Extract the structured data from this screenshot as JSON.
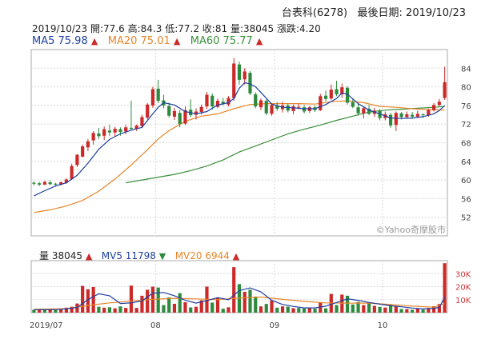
{
  "header": {
    "stock_name": "台表科(6278)",
    "last_date_label": "最後日期: 2019/10/23"
  },
  "quote": {
    "date": "2019/10/23",
    "open": "開:77.6",
    "high": "高:84.3",
    "low": "低:77.2",
    "close": "收:81",
    "volume": "量:38045",
    "change": "漲跌:4.20"
  },
  "ma_legend": [
    {
      "label": "MA5 75.98",
      "color": "#1f3fa0",
      "arrow": "▲"
    },
    {
      "label": "MA20 75.01",
      "color": "#e8862a",
      "arrow": "▲"
    },
    {
      "label": "MA60 75.77",
      "color": "#3b8f3b",
      "arrow": "▲"
    }
  ],
  "vol_legend": [
    {
      "label": "量 38045",
      "color": "#222222",
      "arrow": "▲"
    },
    {
      "label": "MV5 11798",
      "color": "#1f3fa0",
      "arrow": "▼"
    },
    {
      "label": "MV20 6944",
      "color": "#e8862a",
      "arrow": "▲"
    }
  ],
  "watermark": "©Yahoo奇摩股市",
  "colors": {
    "up": "#cc2929",
    "down": "#2e8b3d",
    "ma5": "#1f3fa0",
    "ma20": "#e8862a",
    "ma60": "#3b8f3b"
  },
  "chart_data": {
    "type": "candlestick",
    "price_axis": {
      "min": 48,
      "max": 88,
      "ticks": [
        52,
        56,
        60,
        64,
        68,
        72,
        76,
        80,
        84
      ]
    },
    "volume_axis": {
      "min": 0,
      "max": 40000,
      "ticks": [
        "10K",
        "20K",
        "30K"
      ]
    },
    "x_labels": [
      {
        "label": "2019/07",
        "index": 0
      },
      {
        "label": "08",
        "index": 23
      },
      {
        "label": "09",
        "index": 45
      },
      {
        "label": "10",
        "index": 65
      }
    ],
    "candles": [
      [
        59.4,
        59.7,
        58.8,
        59.2
      ],
      [
        59.3,
        59.6,
        58.7,
        59.0
      ],
      [
        59.0,
        59.8,
        58.9,
        59.6
      ],
      [
        59.5,
        59.9,
        58.9,
        59.1
      ],
      [
        59.2,
        59.4,
        58.6,
        59.0
      ],
      [
        59.0,
        59.7,
        58.8,
        59.5
      ],
      [
        59.4,
        60.4,
        59.2,
        60.1
      ],
      [
        60.2,
        63.5,
        60.0,
        63.0
      ],
      [
        63.2,
        65.6,
        62.8,
        65.4
      ],
      [
        65.0,
        67.6,
        64.9,
        67.2
      ],
      [
        67.0,
        68.8,
        66.2,
        68.3
      ],
      [
        68.5,
        70.5,
        67.6,
        70.1
      ],
      [
        70.0,
        71.2,
        68.8,
        69.4
      ],
      [
        69.5,
        71.5,
        68.6,
        70.9
      ],
      [
        70.6,
        71.9,
        69.4,
        70.2
      ],
      [
        70.2,
        71.4,
        69.4,
        71.0
      ],
      [
        70.9,
        71.3,
        69.5,
        70.3
      ],
      [
        70.4,
        71.8,
        69.8,
        71.3
      ],
      [
        71.2,
        77.0,
        70.6,
        71.0
      ],
      [
        71.0,
        71.9,
        70.5,
        71.7
      ],
      [
        71.6,
        74.0,
        71.2,
        73.5
      ],
      [
        73.4,
        76.5,
        73.0,
        76.2
      ],
      [
        76.0,
        80.0,
        75.5,
        79.5
      ],
      [
        79.6,
        81.5,
        76.5,
        77.0
      ],
      [
        77.1,
        78.3,
        75.4,
        76.0
      ],
      [
        75.9,
        76.6,
        73.4,
        73.8
      ],
      [
        73.6,
        75.5,
        72.9,
        74.8
      ],
      [
        74.4,
        75.0,
        71.3,
        72.0
      ],
      [
        72.1,
        75.8,
        71.8,
        75.0
      ],
      [
        75.1,
        77.3,
        73.5,
        73.9
      ],
      [
        74.0,
        75.4,
        73.0,
        74.7
      ],
      [
        74.6,
        76.2,
        74.0,
        75.7
      ],
      [
        75.8,
        78.9,
        75.2,
        78.3
      ],
      [
        78.1,
        78.6,
        75.1,
        75.8
      ],
      [
        75.7,
        77.5,
        75.4,
        77.0
      ],
      [
        76.8,
        77.6,
        76.0,
        76.3
      ],
      [
        76.2,
        78.0,
        75.8,
        77.6
      ],
      [
        77.6,
        86.2,
        77.0,
        85.0
      ],
      [
        84.8,
        85.4,
        80.5,
        81.5
      ],
      [
        81.6,
        84.0,
        80.5,
        83.3
      ],
      [
        83.0,
        83.4,
        78.2,
        78.6
      ],
      [
        78.4,
        78.8,
        75.4,
        75.8
      ],
      [
        75.6,
        77.5,
        75.0,
        77.1
      ],
      [
        77.0,
        77.3,
        73.9,
        74.3
      ],
      [
        74.2,
        76.5,
        73.8,
        76.1
      ],
      [
        76.0,
        76.7,
        74.8,
        75.3
      ],
      [
        75.2,
        76.8,
        74.5,
        76.0
      ],
      [
        76.0,
        76.4,
        74.5,
        74.9
      ],
      [
        74.8,
        76.2,
        74.1,
        75.8
      ],
      [
        75.7,
        76.4,
        75.2,
        75.7
      ],
      [
        75.6,
        76.1,
        74.3,
        74.7
      ],
      [
        74.8,
        75.9,
        74.4,
        75.6
      ],
      [
        75.6,
        76.0,
        74.6,
        75.0
      ],
      [
        75.0,
        78.5,
        74.8,
        78.0
      ],
      [
        78.1,
        79.2,
        76.9,
        77.4
      ],
      [
        77.5,
        80.5,
        77.2,
        79.4
      ],
      [
        79.5,
        81.3,
        78.0,
        78.4
      ],
      [
        78.4,
        80.7,
        77.6,
        79.9
      ],
      [
        79.8,
        80.1,
        76.2,
        76.6
      ],
      [
        76.7,
        77.5,
        75.4,
        75.7
      ],
      [
        75.6,
        76.4,
        73.8,
        74.3
      ],
      [
        74.3,
        75.8,
        73.2,
        75.4
      ],
      [
        75.3,
        76.1,
        73.9,
        74.2
      ],
      [
        74.2,
        75.5,
        73.5,
        74.9
      ],
      [
        74.8,
        75.2,
        72.8,
        73.3
      ],
      [
        73.3,
        74.7,
        72.8,
        74.1
      ],
      [
        74.0,
        74.4,
        71.2,
        71.7
      ],
      [
        71.8,
        74.7,
        70.5,
        74.4
      ],
      [
        74.3,
        74.6,
        73.0,
        73.5
      ],
      [
        73.5,
        74.7,
        73.2,
        74.1
      ],
      [
        74.0,
        74.6,
        73.1,
        73.6
      ],
      [
        73.6,
        74.9,
        73.4,
        74.2
      ],
      [
        74.1,
        74.3,
        73.3,
        73.9
      ],
      [
        73.9,
        75.3,
        73.6,
        75.0
      ],
      [
        75.0,
        76.5,
        74.7,
        76.1
      ],
      [
        76.1,
        77.4,
        75.8,
        76.8
      ],
      [
        77.6,
        84.3,
        77.2,
        81.0
      ]
    ],
    "ma5": [
      [
        0,
        56.6
      ],
      [
        2,
        57.7
      ],
      [
        4,
        58.7
      ],
      [
        6,
        59.4
      ],
      [
        8,
        61.0
      ],
      [
        10,
        63.6
      ],
      [
        12,
        66.6
      ],
      [
        14,
        68.7
      ],
      [
        16,
        69.9
      ],
      [
        18,
        70.7
      ],
      [
        20,
        71.3
      ],
      [
        22,
        74.2
      ],
      [
        23,
        75.6
      ],
      [
        24,
        76.6
      ],
      [
        26,
        76.1
      ],
      [
        28,
        74.7
      ],
      [
        30,
        74.2
      ],
      [
        32,
        74.7
      ],
      [
        34,
        76.1
      ],
      [
        36,
        76.6
      ],
      [
        37,
        77.5
      ],
      [
        38,
        79.7
      ],
      [
        39,
        80.9
      ],
      [
        40,
        80.6
      ],
      [
        41,
        80.0
      ],
      [
        42,
        78.8
      ],
      [
        44,
        76.3
      ],
      [
        46,
        75.6
      ],
      [
        48,
        75.5
      ],
      [
        50,
        75.3
      ],
      [
        52,
        75.3
      ],
      [
        54,
        76.2
      ],
      [
        56,
        77.5
      ],
      [
        57,
        78.7
      ],
      [
        58,
        78.4
      ],
      [
        60,
        76.4
      ],
      [
        62,
        75.0
      ],
      [
        64,
        74.2
      ],
      [
        66,
        73.3
      ],
      [
        68,
        73.2
      ],
      [
        70,
        73.3
      ],
      [
        72,
        73.6
      ],
      [
        74,
        74.2
      ],
      [
        75,
        74.9
      ],
      [
        76,
        75.98
      ]
    ],
    "ma20": [
      [
        0,
        53.0
      ],
      [
        3,
        53.6
      ],
      [
        6,
        54.4
      ],
      [
        9,
        55.6
      ],
      [
        12,
        57.6
      ],
      [
        15,
        60.2
      ],
      [
        18,
        63.2
      ],
      [
        21,
        66.5
      ],
      [
        23,
        68.8
      ],
      [
        25,
        70.6
      ],
      [
        28,
        72.6
      ],
      [
        31,
        73.7
      ],
      [
        34,
        74.2
      ],
      [
        37,
        75.3
      ],
      [
        40,
        76.2
      ],
      [
        43,
        76.4
      ],
      [
        46,
        76.4
      ],
      [
        49,
        76.4
      ],
      [
        52,
        76.3
      ],
      [
        55,
        76.8
      ],
      [
        58,
        77.0
      ],
      [
        61,
        76.6
      ],
      [
        64,
        75.8
      ],
      [
        67,
        75.6
      ],
      [
        70,
        75.3
      ],
      [
        73,
        75.1
      ],
      [
        76,
        75.01
      ]
    ],
    "ma60": [
      [
        17,
        59.4
      ],
      [
        20,
        60.0
      ],
      [
        23,
        60.6
      ],
      [
        26,
        61.2
      ],
      [
        29,
        62.0
      ],
      [
        32,
        63.0
      ],
      [
        35,
        64.3
      ],
      [
        38,
        66.0
      ],
      [
        41,
        67.3
      ],
      [
        44,
        68.6
      ],
      [
        47,
        69.9
      ],
      [
        50,
        70.9
      ],
      [
        53,
        71.8
      ],
      [
        56,
        72.8
      ],
      [
        59,
        73.7
      ],
      [
        62,
        74.6
      ],
      [
        65,
        75.0
      ],
      [
        68,
        75.2
      ],
      [
        71,
        75.4
      ],
      [
        74,
        75.6
      ],
      [
        76,
        75.77
      ]
    ],
    "volumes": [
      [
        2200,
        "d"
      ],
      [
        2400,
        "u"
      ],
      [
        2100,
        "d"
      ],
      [
        2600,
        "u"
      ],
      [
        1900,
        "d"
      ],
      [
        2300,
        "u"
      ],
      [
        3800,
        "u"
      ],
      [
        4500,
        "u"
      ],
      [
        7000,
        "u"
      ],
      [
        20600,
        "u"
      ],
      [
        18000,
        "u"
      ],
      [
        19700,
        "u"
      ],
      [
        4500,
        "d"
      ],
      [
        3800,
        "u"
      ],
      [
        4100,
        "d"
      ],
      [
        3300,
        "u"
      ],
      [
        4800,
        "d"
      ],
      [
        3600,
        "u"
      ],
      [
        20800,
        "u"
      ],
      [
        3600,
        "u"
      ],
      [
        13000,
        "u"
      ],
      [
        17600,
        "u"
      ],
      [
        20000,
        "u"
      ],
      [
        19300,
        "d"
      ],
      [
        5800,
        "d"
      ],
      [
        11700,
        "d"
      ],
      [
        6800,
        "u"
      ],
      [
        15000,
        "d"
      ],
      [
        8000,
        "u"
      ],
      [
        4000,
        "d"
      ],
      [
        4500,
        "u"
      ],
      [
        9500,
        "u"
      ],
      [
        20000,
        "u"
      ],
      [
        7700,
        "d"
      ],
      [
        11200,
        "u"
      ],
      [
        3000,
        "d"
      ],
      [
        4100,
        "u"
      ],
      [
        35000,
        "u"
      ],
      [
        21900,
        "d"
      ],
      [
        16000,
        "u"
      ],
      [
        17600,
        "d"
      ],
      [
        12400,
        "d"
      ],
      [
        4800,
        "u"
      ],
      [
        6700,
        "d"
      ],
      [
        9400,
        "u"
      ],
      [
        3800,
        "d"
      ],
      [
        4800,
        "u"
      ],
      [
        4600,
        "d"
      ],
      [
        3400,
        "u"
      ],
      [
        3600,
        "d"
      ],
      [
        3200,
        "d"
      ],
      [
        3600,
        "u"
      ],
      [
        3000,
        "d"
      ],
      [
        7700,
        "u"
      ],
      [
        3300,
        "d"
      ],
      [
        14400,
        "u"
      ],
      [
        5800,
        "d"
      ],
      [
        13900,
        "u"
      ],
      [
        13000,
        "d"
      ],
      [
        6300,
        "d"
      ],
      [
        8200,
        "d"
      ],
      [
        5800,
        "u"
      ],
      [
        7200,
        "d"
      ],
      [
        5200,
        "u"
      ],
      [
        4400,
        "d"
      ],
      [
        3900,
        "u"
      ],
      [
        6000,
        "d"
      ],
      [
        5000,
        "u"
      ],
      [
        2800,
        "d"
      ],
      [
        2700,
        "u"
      ],
      [
        2200,
        "d"
      ],
      [
        3200,
        "u"
      ],
      [
        2300,
        "d"
      ],
      [
        3500,
        "u"
      ],
      [
        4900,
        "u"
      ],
      [
        6600,
        "u"
      ],
      [
        38045,
        "u"
      ]
    ],
    "mv5": [
      [
        0,
        2300
      ],
      [
        4,
        2300
      ],
      [
        6,
        2900
      ],
      [
        8,
        4000
      ],
      [
        10,
        10000
      ],
      [
        12,
        14500
      ],
      [
        14,
        13000
      ],
      [
        16,
        7000
      ],
      [
        18,
        7500
      ],
      [
        20,
        9000
      ],
      [
        22,
        15000
      ],
      [
        24,
        15500
      ],
      [
        26,
        13000
      ],
      [
        28,
        9500
      ],
      [
        30,
        7300
      ],
      [
        32,
        9300
      ],
      [
        34,
        11500
      ],
      [
        36,
        10000
      ],
      [
        38,
        17000
      ],
      [
        40,
        19000
      ],
      [
        42,
        16000
      ],
      [
        44,
        9500
      ],
      [
        46,
        6300
      ],
      [
        48,
        4800
      ],
      [
        50,
        3600
      ],
      [
        52,
        3600
      ],
      [
        54,
        5000
      ],
      [
        56,
        7800
      ],
      [
        58,
        10600
      ],
      [
        60,
        9500
      ],
      [
        62,
        7800
      ],
      [
        64,
        6500
      ],
      [
        66,
        5300
      ],
      [
        68,
        4500
      ],
      [
        70,
        3500
      ],
      [
        72,
        2800
      ],
      [
        74,
        3300
      ],
      [
        75,
        4000
      ],
      [
        76,
        11798
      ]
    ],
    "mv20": [
      [
        0,
        2500
      ],
      [
        6,
        3000
      ],
      [
        10,
        5500
      ],
      [
        14,
        7500
      ],
      [
        18,
        8800
      ],
      [
        22,
        10300
      ],
      [
        26,
        11000
      ],
      [
        30,
        10600
      ],
      [
        34,
        10000
      ],
      [
        38,
        11200
      ],
      [
        42,
        12000
      ],
      [
        46,
        10200
      ],
      [
        50,
        8700
      ],
      [
        54,
        7500
      ],
      [
        58,
        7300
      ],
      [
        62,
        7300
      ],
      [
        66,
        6200
      ],
      [
        70,
        5000
      ],
      [
        74,
        4200
      ],
      [
        76,
        6944
      ]
    ]
  }
}
